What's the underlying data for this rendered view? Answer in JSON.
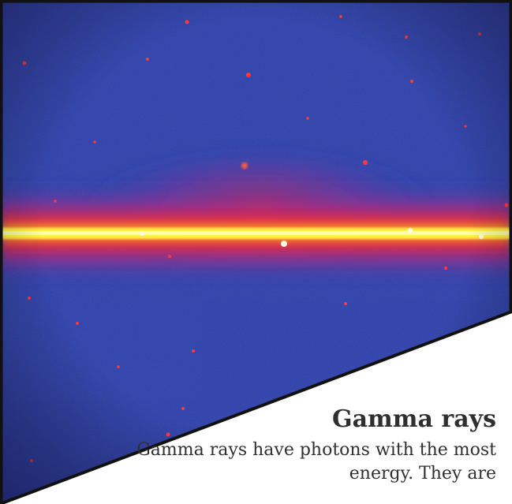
{
  "panel": {
    "title": "Gamma rays",
    "body": "Gamma rays have photons with the most energy. They are"
  },
  "colors": {
    "sky_background": "#2e3fa8",
    "plane_core": "#fff24a",
    "plane_glow": "#e8263d",
    "border": "#111111",
    "panel_background": "#ffffff",
    "text": "#2f2f2f"
  }
}
